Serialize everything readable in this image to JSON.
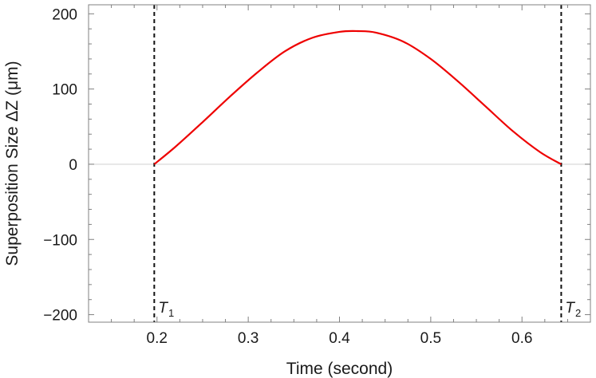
{
  "chart_data": {
    "type": "line",
    "title": "",
    "xlabel": "Time (second)",
    "ylabel": "Superposition Size ΔZ (μm)",
    "xlim": [
      0.125,
      0.675
    ],
    "ylim": [
      -210,
      212
    ],
    "x_ticks": [
      0.2,
      0.3,
      0.4,
      0.5,
      0.6
    ],
    "x_tick_labels": [
      "0.2",
      "0.3",
      "0.4",
      "0.5",
      "0.6"
    ],
    "y_ticks": [
      -200,
      -100,
      0,
      100,
      200
    ],
    "y_tick_labels": [
      "−200",
      "−100",
      "0",
      "100",
      "200"
    ],
    "grid": false,
    "zero_line": true,
    "series": [
      {
        "color": "#ee0000",
        "x": [
          0.197,
          0.22,
          0.25,
          0.28,
          0.31,
          0.34,
          0.37,
          0.4,
          0.42,
          0.44,
          0.47,
          0.5,
          0.53,
          0.56,
          0.59,
          0.62,
          0.643
        ],
        "y": [
          0,
          23,
          56,
          90,
          122,
          150,
          168,
          176,
          177,
          175,
          163,
          140,
          110,
          77,
          44,
          16,
          0
        ]
      }
    ],
    "markers": [
      {
        "x": 0.197,
        "label": "T",
        "subscript": "1"
      },
      {
        "x": 0.643,
        "label": "T",
        "subscript": "2"
      }
    ]
  }
}
